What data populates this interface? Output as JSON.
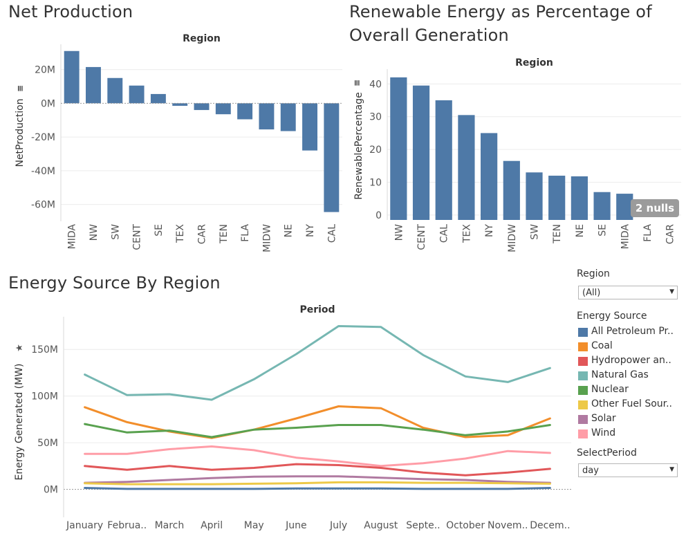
{
  "titles": {
    "net_production": "Net Production",
    "renewable_line1": "Renewable Energy as Percentage of",
    "renewable_line2": "Overall Generation",
    "energy_source": "Energy Source By Region"
  },
  "filters": {
    "region_label": "Region",
    "region_value": "(All)",
    "energy_source_label": "Energy Source",
    "select_period_label": "SelectPeriod",
    "select_period_value": "day"
  },
  "legend": [
    {
      "label": "All Petroleum Pr..",
      "color": "#4e79a7"
    },
    {
      "label": "Coal",
      "color": "#f28e2b"
    },
    {
      "label": "Hydropower an..",
      "color": "#e15759"
    },
    {
      "label": "Natural Gas",
      "color": "#76b7b2"
    },
    {
      "label": "Nuclear",
      "color": "#59a14f"
    },
    {
      "label": "Other Fuel Sour..",
      "color": "#edc948"
    },
    {
      "label": "Solar",
      "color": "#b07aa1"
    },
    {
      "label": "Wind",
      "color": "#ff9da7"
    }
  ],
  "nulls_badge": "2 nulls",
  "chart_data": [
    {
      "type": "bar",
      "title": "Net Production",
      "header": "Region",
      "ylabel": "NetProduction",
      "categories": [
        "MIDA",
        "NW",
        "SW",
        "CENT",
        "SE",
        "TEX",
        "CAR",
        "TEN",
        "FLA",
        "MIDW",
        "NE",
        "NY",
        "CAL"
      ],
      "values": [
        31,
        21.5,
        15,
        10.5,
        5.5,
        -1.5,
        -4,
        -6.5,
        -9.5,
        -15.5,
        -16.5,
        -28,
        -64.5
      ],
      "unit": "M",
      "ylim": [
        -70,
        35
      ],
      "yticks": [
        20,
        0,
        -20,
        -40,
        -60
      ],
      "ytick_labels": [
        "20M",
        "0M",
        "-20M",
        "-40M",
        "-60M"
      ],
      "color": "#4e79a7"
    },
    {
      "type": "bar",
      "title": "Renewable Energy as Percentage of Overall Generation",
      "header": "Region",
      "ylabel": "RenewablePercentage",
      "categories": [
        "NW",
        "CENT",
        "CAL",
        "TEX",
        "NY",
        "MIDW",
        "SW",
        "TEN",
        "NE",
        "SE",
        "MIDA",
        "FLA",
        "CAR"
      ],
      "values": [
        42,
        39.5,
        35,
        30.5,
        25,
        16.5,
        13,
        12,
        11.8,
        7,
        6.5,
        null,
        null
      ],
      "ylim": [
        -1.5,
        44.5
      ],
      "yticks": [
        40,
        30,
        20,
        10,
        0
      ],
      "ytick_labels": [
        "40",
        "30",
        "20",
        "10",
        "0"
      ],
      "color": "#4e79a7"
    },
    {
      "type": "line",
      "title": "Energy Source By Region",
      "header": "Period",
      "ylabel": "Energy Generated (MW)",
      "categories": [
        "January",
        "Februa..",
        "March",
        "April",
        "May",
        "June",
        "July",
        "August",
        "Septe..",
        "October",
        "Novem..",
        "Decem.."
      ],
      "ylim": [
        -30,
        185
      ],
      "yticks": [
        150,
        100,
        50,
        0
      ],
      "ytick_labels": [
        "150M",
        "100M",
        "50M",
        "0M"
      ],
      "series": [
        {
          "name": "Natural Gas",
          "color": "#76b7b2",
          "values": [
            123,
            101,
            102,
            96,
            118,
            145,
            175,
            174,
            144,
            121,
            115,
            130
          ]
        },
        {
          "name": "Coal",
          "color": "#f28e2b",
          "values": [
            88,
            72,
            62,
            55,
            64,
            76,
            89,
            87,
            66,
            56,
            58,
            76
          ]
        },
        {
          "name": "Nuclear",
          "color": "#59a14f",
          "values": [
            70,
            61,
            63,
            56,
            64,
            66,
            69,
            69,
            64,
            58,
            62,
            69
          ]
        },
        {
          "name": "Wind",
          "color": "#ff9da7",
          "values": [
            38,
            38,
            43,
            46,
            42,
            34,
            30,
            25,
            28,
            33,
            41,
            39
          ]
        },
        {
          "name": "Hydropower an..",
          "color": "#e15759",
          "values": [
            25,
            21,
            25,
            21,
            23,
            27,
            26,
            23,
            18,
            15,
            18,
            22
          ]
        },
        {
          "name": "Solar",
          "color": "#b07aa1",
          "values": [
            7,
            8,
            10,
            12,
            13.5,
            14,
            14,
            12.5,
            11,
            10,
            8,
            7
          ]
        },
        {
          "name": "Other Fuel Sour..",
          "color": "#edc948",
          "values": [
            6.5,
            5.5,
            5.5,
            5.5,
            6,
            6.5,
            7.5,
            7.5,
            7,
            7,
            6.5,
            6
          ]
        },
        {
          "name": "All Petroleum Pr..",
          "color": "#4e79a7",
          "values": [
            1.5,
            0.5,
            0.5,
            0.5,
            0.5,
            1,
            1,
            1,
            0.5,
            0.5,
            0.5,
            1.5
          ]
        }
      ]
    }
  ]
}
